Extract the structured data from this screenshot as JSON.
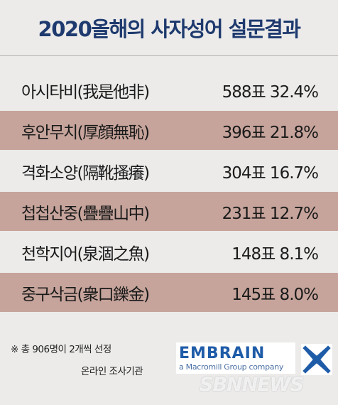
{
  "chart_data": {
    "type": "table",
    "title": "2020올해의 사자성어 설문결과",
    "rows": [
      {
        "label": "아시타비(我是他非)",
        "value": "588표 32.4%",
        "votes": 588,
        "percent": 32.4
      },
      {
        "label": "후안무치(厚顔無恥)",
        "value": "396표 21.8%",
        "votes": 396,
        "percent": 21.8
      },
      {
        "label": "격화소양(隔靴搔癢)",
        "value": "304표 16.7%",
        "votes": 304,
        "percent": 16.7
      },
      {
        "label": "첩첩산중(疊疊山中)",
        "value": "231표 12.7%",
        "votes": 231,
        "percent": 12.7
      },
      {
        "label": "천학지어(泉涸之魚)",
        "value": "148표 8.1%",
        "votes": 148,
        "percent": 8.1
      },
      {
        "label": "중구삭금(衆口鑠金)",
        "value": "145표 8.0%",
        "votes": 145,
        "percent": 8.0
      }
    ]
  },
  "footer": {
    "note": "※ 총 906명이 2개씩 선정",
    "source": "온라인 조사기관",
    "logo_name": "EMBRAIN",
    "logo_tagline": "a Macromill Group company",
    "watermark": "SBNNEWS"
  },
  "colors": {
    "title": "#1e3a6e",
    "shaded_row": "#c6a49b",
    "background": "#ecebea",
    "logo": "#1f5ca8"
  }
}
